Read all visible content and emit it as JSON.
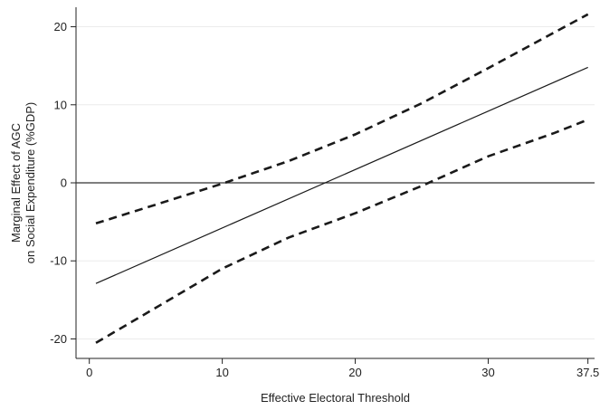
{
  "chart_data": {
    "type": "line",
    "title": "",
    "xlabel": "Effective Electoral Threshold",
    "ylabel_lines": [
      "Marginal Effect of AGC",
      "on Social Expenditure (%GDP)"
    ],
    "xlim": [
      -1,
      38
    ],
    "ylim": [
      -22.5,
      22.5
    ],
    "xticks": [
      0,
      10,
      20,
      30,
      37.5
    ],
    "xtick_labels": [
      "0",
      "10",
      "20",
      "30",
      "37.5"
    ],
    "yticks": [
      -20,
      -10,
      0,
      10,
      20
    ],
    "ytick_labels": [
      "-20",
      "-10",
      "0",
      "10",
      "20"
    ],
    "grid": "horizontal",
    "reference_line_y": 0,
    "series": [
      {
        "style": "solid",
        "x": [
          0.5,
          37.5
        ],
        "y": [
          -12.9,
          14.8
        ]
      },
      {
        "style": "dashed",
        "x": [
          0.5,
          5,
          10,
          15,
          20,
          25,
          30,
          35,
          37.5
        ],
        "y": [
          -5.2,
          -2.8,
          -0.1,
          2.8,
          6.2,
          10.2,
          14.7,
          19.3,
          21.6
        ]
      },
      {
        "style": "dashed",
        "x": [
          0.5,
          5,
          10,
          15,
          20,
          25,
          30,
          35,
          37.5
        ],
        "y": [
          -20.5,
          -16.0,
          -11.0,
          -7.0,
          -3.9,
          -0.4,
          3.4,
          6.4,
          8.1
        ]
      }
    ]
  }
}
